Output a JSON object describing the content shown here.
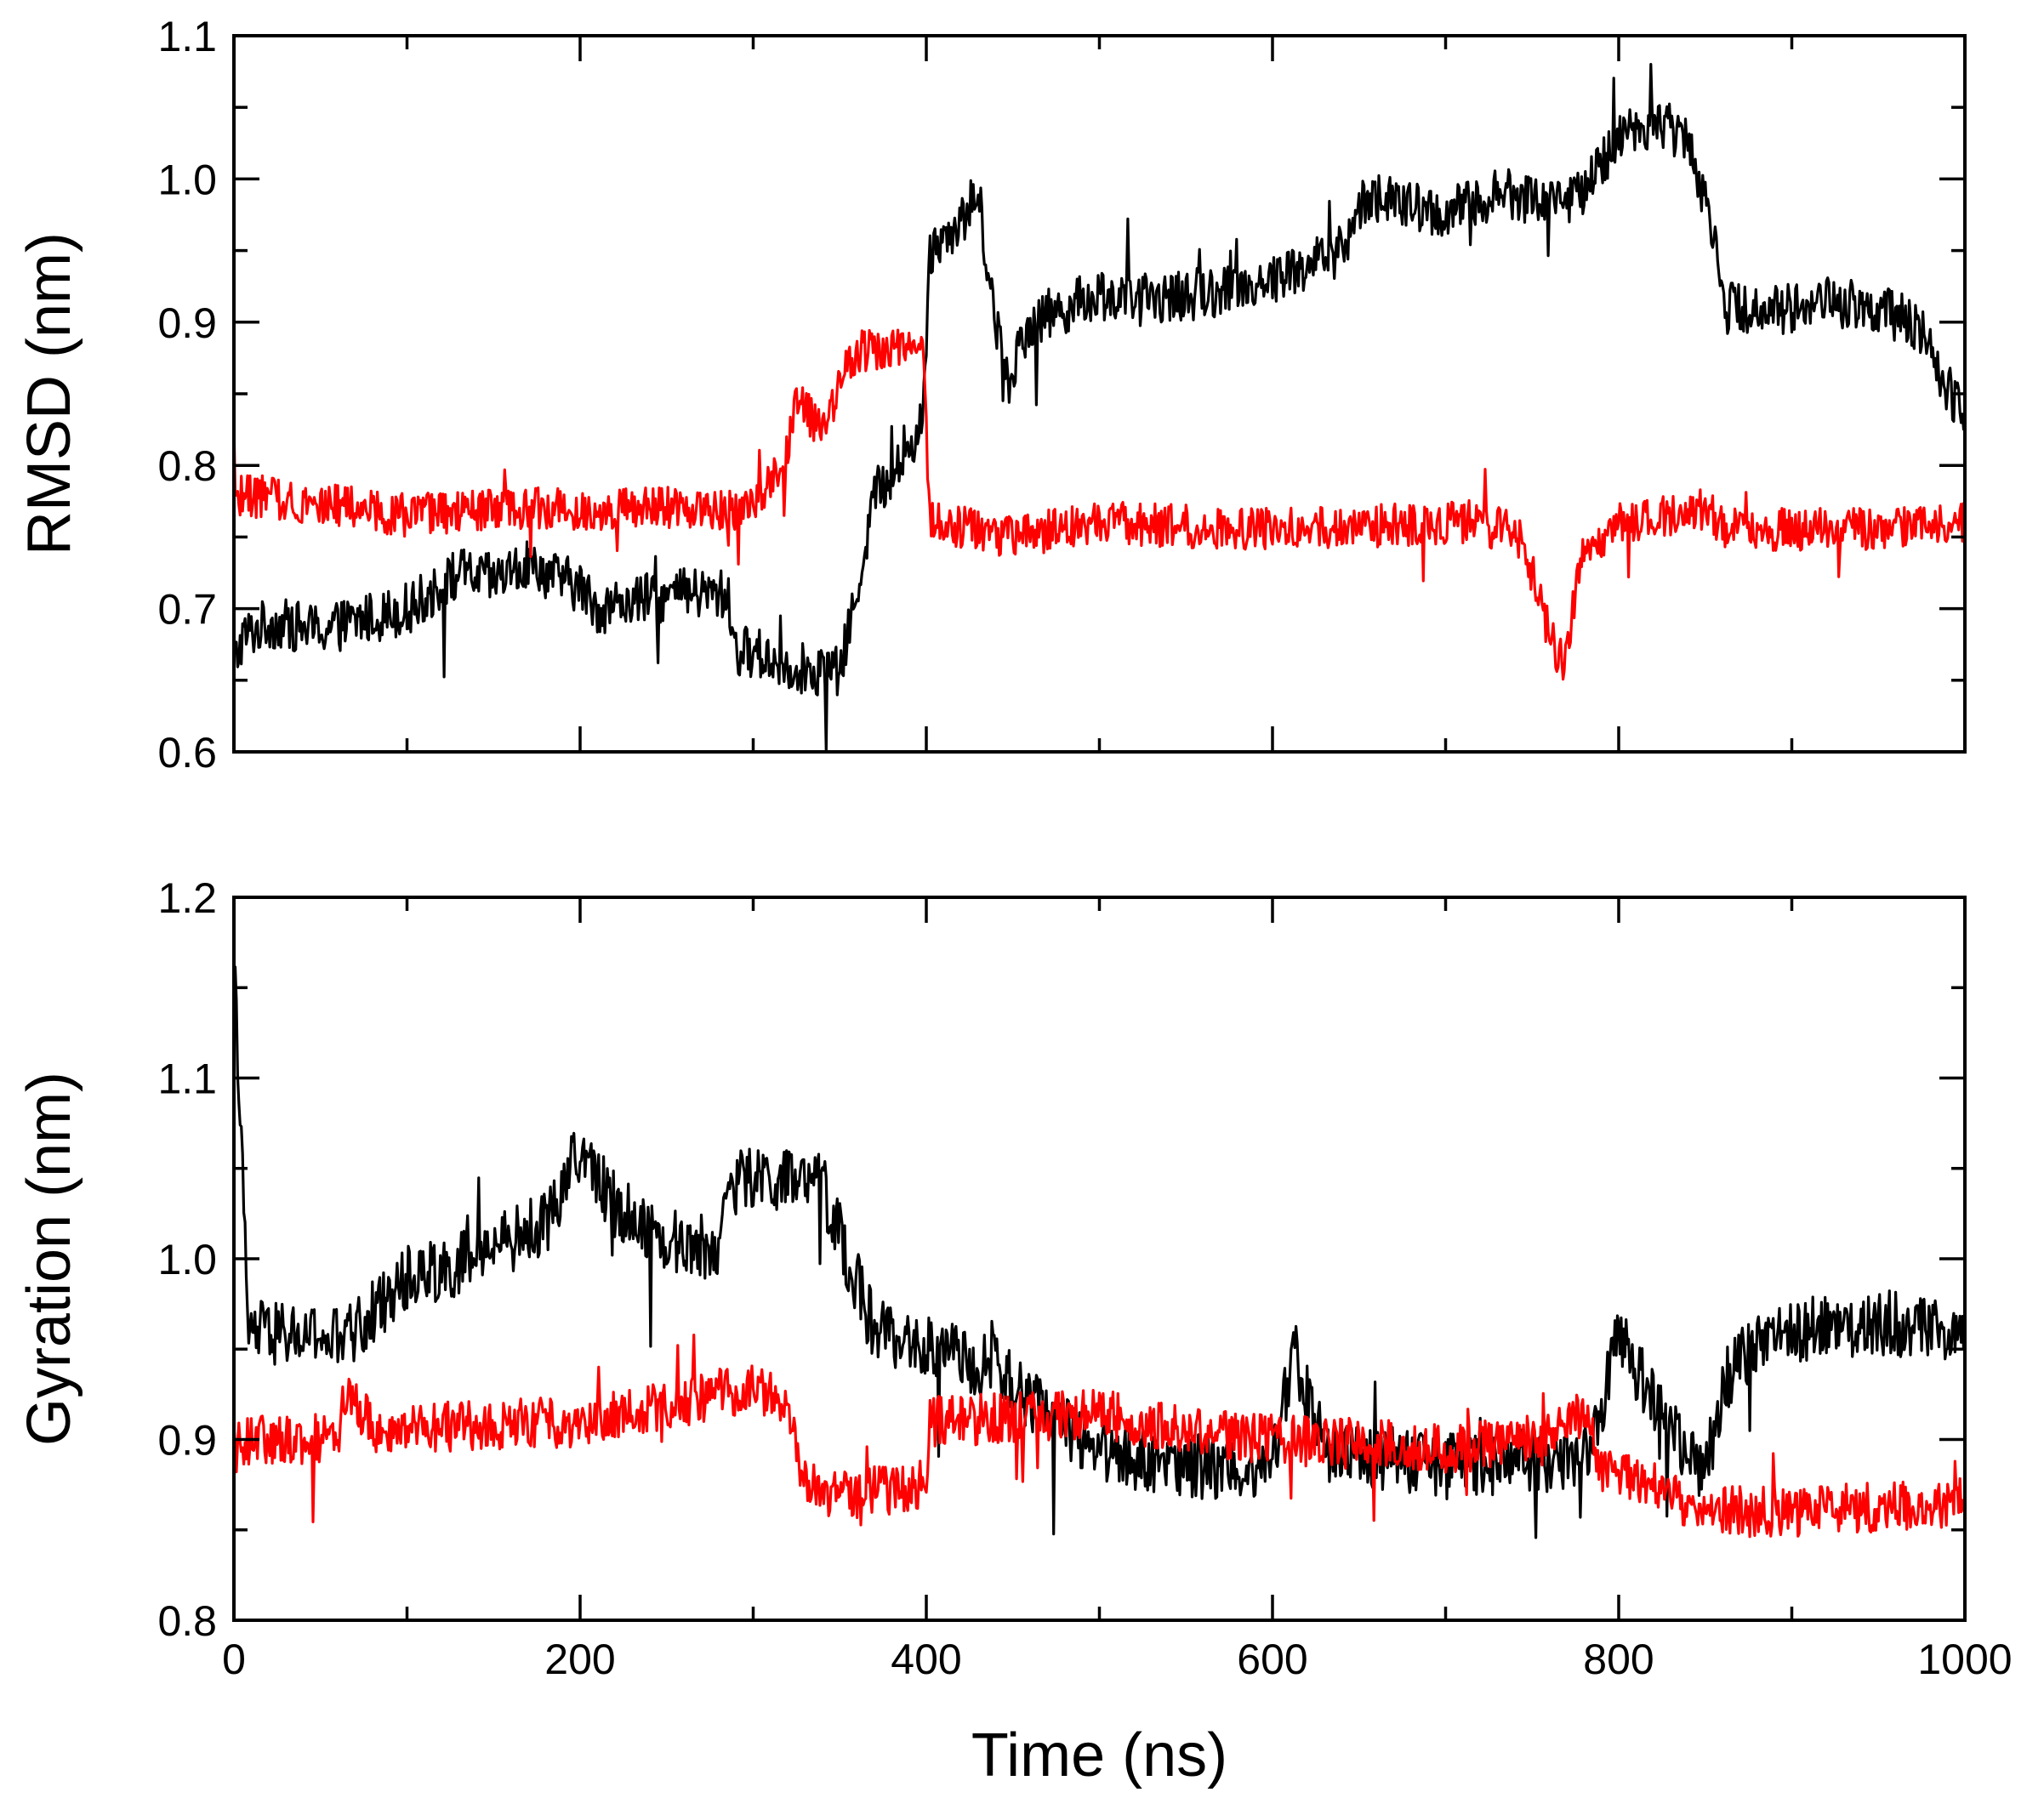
{
  "chart_data": [
    {
      "type": "line",
      "ylabel": "RMSD (nm)",
      "xlabel": "",
      "xlim": [
        0,
        1000
      ],
      "ylim": [
        0.6,
        1.1
      ],
      "xticks": [
        0,
        200,
        400,
        600,
        800,
        1000
      ],
      "yticks": [
        "0.6",
        "0.7",
        "0.8",
        "0.9",
        "1.0",
        "1.1"
      ],
      "show_x_tick_labels": false,
      "series": [
        {
          "name": "black",
          "color": "#000000",
          "noise": 0.018,
          "x": [
            0,
            5,
            20,
            50,
            100,
            120,
            130,
            150,
            170,
            200,
            210,
            230,
            260,
            285,
            290,
            300,
            320,
            350,
            358,
            370,
            385,
            398,
            402,
            410,
            420,
            430,
            440,
            448,
            452,
            460,
            480,
            500,
            520,
            560,
            600,
            620,
            640,
            655,
            665,
            680,
            700,
            730,
            760,
            780,
            800,
            820,
            840,
            856,
            862,
            875,
            900,
            920,
            950,
            975,
            985,
            1000
          ],
          "y": [
            0.66,
            0.68,
            0.69,
            0.685,
            0.7,
            0.715,
            0.725,
            0.72,
            0.73,
            0.715,
            0.7,
            0.705,
            0.71,
            0.71,
            0.67,
            0.67,
            0.66,
            0.655,
            0.7,
            0.78,
            0.8,
            0.83,
            0.95,
            0.96,
            0.97,
            0.99,
            0.9,
            0.85,
            0.88,
            0.9,
            0.91,
            0.92,
            0.915,
            0.92,
            0.93,
            0.94,
            0.95,
            0.99,
            0.985,
            0.98,
            0.975,
            0.99,
            0.985,
            0.99,
            1.03,
            1.04,
            1.03,
            0.96,
            0.91,
            0.91,
            0.91,
            0.915,
            0.91,
            0.895,
            0.86,
            0.84
          ]
        },
        {
          "name": "red",
          "color": "#ff0000",
          "noise": 0.015,
          "x": [
            0,
            40,
            100,
            180,
            240,
            300,
            318,
            325,
            340,
            350,
            360,
            380,
            398,
            402,
            410,
            450,
            500,
            600,
            700,
            740,
            752,
            760,
            768,
            780,
            800,
            850,
            862,
            900,
            950,
            1000
          ],
          "y": [
            0.78,
            0.775,
            0.765,
            0.77,
            0.77,
            0.77,
            0.8,
            0.85,
            0.82,
            0.86,
            0.88,
            0.88,
            0.89,
            0.76,
            0.76,
            0.75,
            0.76,
            0.755,
            0.76,
            0.755,
            0.72,
            0.68,
            0.66,
            0.74,
            0.76,
            0.77,
            0.755,
            0.755,
            0.755,
            0.76
          ]
        }
      ]
    },
    {
      "type": "line",
      "ylabel": "Gyration (nm)",
      "xlabel": "Time (ns)",
      "xlim": [
        0,
        1000
      ],
      "ylim": [
        0.8,
        1.2
      ],
      "xticks": [
        0,
        200,
        400,
        600,
        800,
        1000
      ],
      "xtick_labels": [
        "0",
        "200",
        "400",
        "600",
        "800",
        "1000"
      ],
      "yticks": [
        "0.8",
        "0.9",
        "1.0",
        "1.1",
        "1.2"
      ],
      "show_x_tick_labels": true,
      "series": [
        {
          "name": "black",
          "color": "#000000",
          "noise": 0.018,
          "x": [
            0,
            3,
            8,
            60,
            70,
            100,
            140,
            180,
            200,
            220,
            250,
            280,
            285,
            300,
            340,
            355,
            370,
            400,
            440,
            460,
            500,
            540,
            600,
            612,
            630,
            700,
            780,
            790,
            800,
            820,
            850,
            860,
            880,
            900,
            950,
            1000
          ],
          "y": [
            1.16,
            1.1,
            0.96,
            0.955,
            0.96,
            0.99,
            1.0,
            1.02,
            1.06,
            1.03,
            1.01,
            1.005,
            1.04,
            1.045,
            1.04,
            1.0,
            0.96,
            0.95,
            0.94,
            0.92,
            0.895,
            0.885,
            0.885,
            0.95,
            0.895,
            0.885,
            0.89,
            0.92,
            0.96,
            0.92,
            0.88,
            0.93,
            0.955,
            0.96,
            0.965,
            0.96
          ]
        },
        {
          "name": "red",
          "color": "#ff0000",
          "noise": 0.014,
          "x": [
            0,
            60,
            65,
            80,
            200,
            280,
            300,
            320,
            330,
            345,
            360,
            400,
            402,
            410,
            500,
            550,
            600,
            700,
            760,
            780,
            790,
            820,
            850,
            900,
            1000
          ],
          "y": [
            0.9,
            0.9,
            0.93,
            0.905,
            0.91,
            0.925,
            0.93,
            0.92,
            0.875,
            0.87,
            0.87,
            0.875,
            0.91,
            0.91,
            0.915,
            0.905,
            0.9,
            0.895,
            0.9,
            0.915,
            0.885,
            0.875,
            0.86,
            0.86,
            0.865
          ]
        }
      ]
    }
  ]
}
